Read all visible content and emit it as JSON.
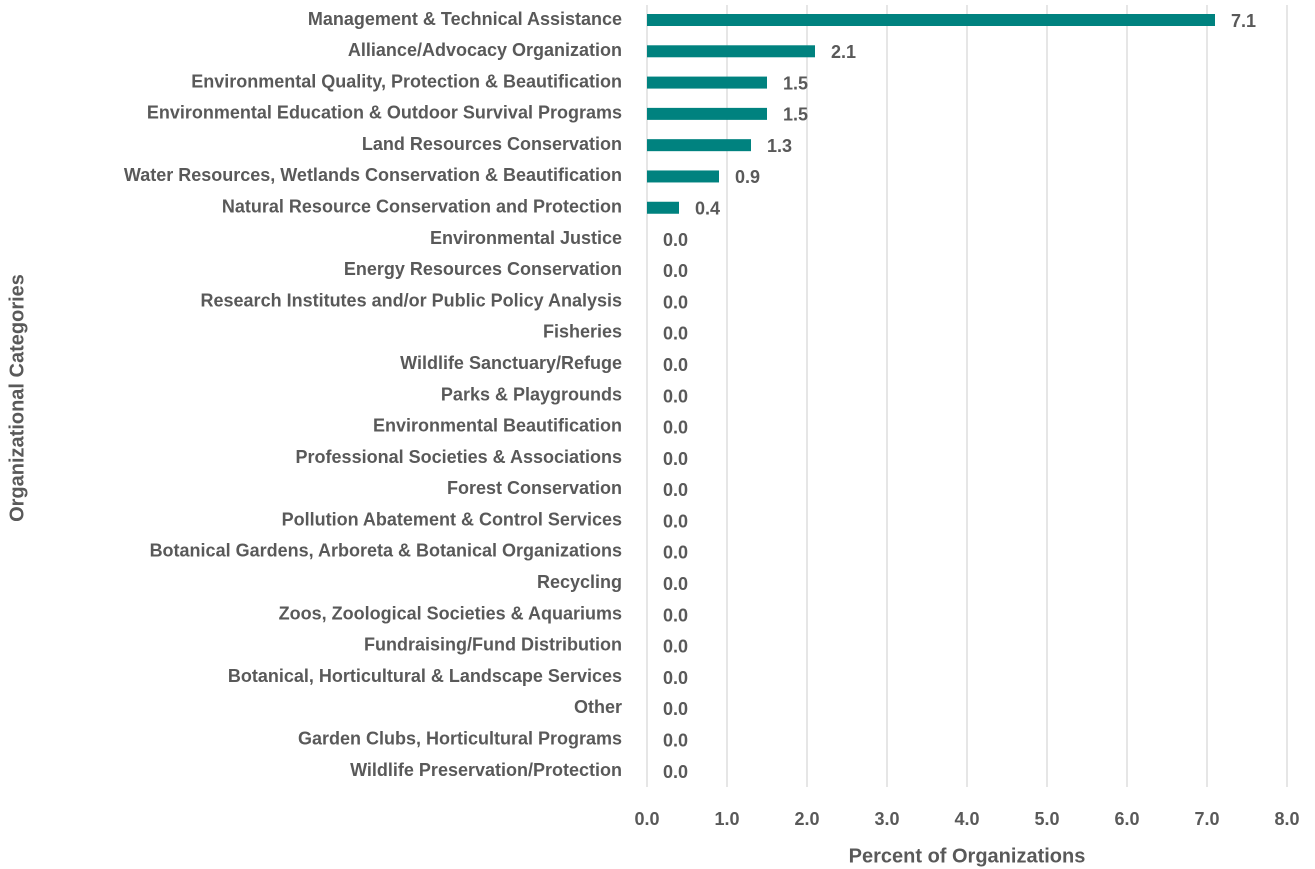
{
  "chart_data": {
    "type": "bar",
    "orientation": "horizontal",
    "x_label": "Percent of Organizations",
    "y_label": "Organizational Categories",
    "categories": [
      "Management & Technical Assistance",
      "Alliance/Advocacy Organization",
      "Environmental Quality, Protection & Beautification",
      "Environmental Education & Outdoor Survival Programs",
      "Land Resources Conservation",
      "Water Resources, Wetlands Conservation & Beautification",
      "Natural Resource Conservation and Protection",
      "Environmental Justice",
      "Energy Resources Conservation",
      "Research Institutes and/or Public Policy Analysis",
      "Fisheries",
      "Wildlife Sanctuary/Refuge",
      "Parks & Playgrounds",
      "Environmental Beautification",
      "Professional Societies & Associations",
      "Forest Conservation",
      "Pollution Abatement & Control Services",
      "Botanical Gardens, Arboreta & Botanical Organizations",
      "Recycling",
      "Zoos, Zoological Societies & Aquariums",
      "Fundraising/Fund Distribution",
      "Botanical, Horticultural & Landscape Services",
      "Other",
      "Garden Clubs, Horticultural Programs",
      "Wildlife Preservation/Protection"
    ],
    "values": [
      7.1,
      2.1,
      1.5,
      1.5,
      1.3,
      0.9,
      0.4,
      0,
      0,
      0,
      0,
      0,
      0,
      0,
      0,
      0,
      0,
      0,
      0,
      0,
      0,
      0,
      0,
      0,
      0
    ],
    "value_labels": [
      "7.1",
      "2.1",
      "1.5",
      "1.5",
      "1.3",
      "0.9",
      "0.4",
      "0.0",
      "0.0",
      "0.0",
      "0.0",
      "0.0",
      "0.0",
      "0.0",
      "0.0",
      "0.0",
      "0.0",
      "0.0",
      "0.0",
      "0.0",
      "0.0",
      "0.0",
      "0.0",
      "0.0",
      "0.0"
    ],
    "color": "#00827f",
    "xlim": [
      0,
      8
    ],
    "xticks": [
      {
        "value": 0,
        "label": "0.0"
      },
      {
        "value": 1,
        "label": "1.0"
      },
      {
        "value": 2,
        "label": "2.0"
      },
      {
        "value": 3,
        "label": "3.0"
      },
      {
        "value": 4,
        "label": "4.0"
      },
      {
        "value": 5,
        "label": "5.0"
      },
      {
        "value": 6,
        "label": "6.0"
      },
      {
        "value": 7,
        "label": "7.0"
      },
      {
        "value": 8,
        "label": "8.0"
      }
    ],
    "grid": true
  }
}
